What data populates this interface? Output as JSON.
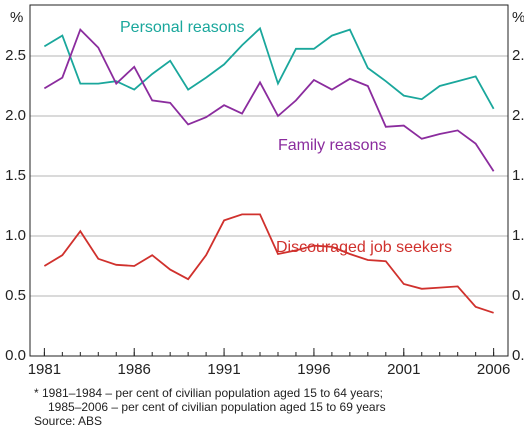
{
  "chart_data": {
    "type": "line",
    "y_label": "%",
    "x": [
      1981,
      1982,
      1983,
      1984,
      1985,
      1986,
      1987,
      1988,
      1989,
      1990,
      1991,
      1992,
      1993,
      1994,
      1995,
      1996,
      1997,
      1998,
      1999,
      2000,
      2001,
      2002,
      2003,
      2004,
      2005,
      2006
    ],
    "series": [
      {
        "name": "Personal reasons",
        "color": "#1aa79c",
        "values": [
          2.58,
          2.67,
          2.27,
          2.27,
          2.29,
          2.22,
          2.35,
          2.46,
          2.22,
          2.32,
          2.43,
          2.59,
          2.73,
          2.27,
          2.56,
          2.56,
          2.67,
          2.72,
          2.4,
          2.29,
          2.17,
          2.14,
          2.25,
          2.29,
          2.33,
          2.06
        ]
      },
      {
        "name": "Family reasons",
        "color": "#8b2c9e",
        "values": [
          2.23,
          2.32,
          2.72,
          2.57,
          2.27,
          2.41,
          2.13,
          2.11,
          1.93,
          1.99,
          2.09,
          2.02,
          2.28,
          2.0,
          2.13,
          2.3,
          2.22,
          2.31,
          2.25,
          1.91,
          1.92,
          1.81,
          1.85,
          1.88,
          1.77,
          1.54
        ]
      },
      {
        "name": "Discouraged job seekers",
        "color": "#d0312d",
        "values": [
          0.75,
          0.84,
          1.04,
          0.81,
          0.76,
          0.75,
          0.84,
          0.72,
          0.64,
          0.84,
          1.13,
          1.18,
          1.18,
          0.85,
          0.88,
          0.92,
          0.91,
          0.85,
          0.8,
          0.79,
          0.6,
          0.56,
          0.57,
          0.58,
          0.41,
          0.36
        ]
      }
    ],
    "xlim": [
      1980.2,
      2006.8
    ],
    "xticks": [
      1981,
      1986,
      1991,
      1996,
      2001,
      2006
    ],
    "ylim": [
      0,
      2.925
    ],
    "yticks": [
      {
        "value": 0,
        "label": "0.0"
      },
      0.5,
      {
        "value": 1,
        "label": "1.0"
      },
      1.5,
      {
        "value": 2,
        "label": "2.0"
      },
      2.5
    ],
    "grid": true,
    "footnotes": [
      "*   1981–1984 – per cent of civilian population aged 15 to 64 years;",
      "1985–2006 – per cent of civilian population aged 15 to 69 years",
      "Source: ABS"
    ]
  }
}
